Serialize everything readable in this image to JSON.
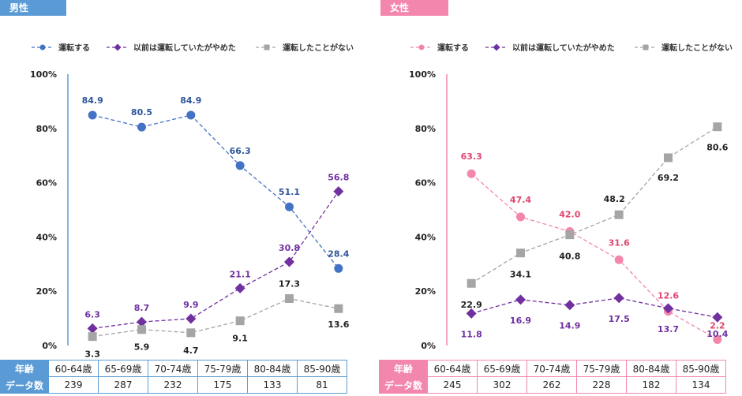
{
  "chart_data": [
    {
      "type": "line",
      "title": "男性",
      "categories": [
        "60-64歳",
        "65-69歳",
        "70-74歳",
        "75-79歳",
        "80-84歳",
        "85-90歳"
      ],
      "y_ticks": [
        "0%",
        "20%",
        "40%",
        "60%",
        "80%",
        "100%"
      ],
      "ylim": [
        0,
        100
      ],
      "series": [
        {
          "name": "運転する",
          "values": [
            84.9,
            80.5,
            84.9,
            66.3,
            51.1,
            28.4
          ],
          "labels": [
            "84.9",
            "80.5",
            "84.9",
            "66.3",
            "51.1",
            "28.4"
          ],
          "color": "#4472c4",
          "label_color": "#2f5597",
          "marker": "circle"
        },
        {
          "name": "以前は運転していたがやめた",
          "values": [
            6.3,
            8.7,
            9.9,
            21.1,
            30.8,
            56.8
          ],
          "labels": [
            "6.3",
            "8.7",
            "9.9",
            "21.1",
            "30.8",
            "56.8"
          ],
          "color": "#7030a0",
          "label_color": "#7030a0",
          "marker": "diamond"
        },
        {
          "name": "運転したことがない",
          "values": [
            3.3,
            5.9,
            4.7,
            9.1,
            17.3,
            13.6
          ],
          "labels": [
            "3.3",
            "5.9",
            "4.7",
            "9.1",
            "17.3",
            "13.6"
          ],
          "color": "#a5a5a5",
          "label_color": "#222222",
          "marker": "square"
        }
      ],
      "table": {
        "row1_header": "年齢",
        "row2_header": "データ数",
        "counts": [
          "239",
          "287",
          "232",
          "175",
          "133",
          "81"
        ]
      }
    },
    {
      "type": "line",
      "title": "女性",
      "categories": [
        "60-64歳",
        "65-69歳",
        "70-74歳",
        "75-79歳",
        "80-84歳",
        "85-90歳"
      ],
      "y_ticks": [
        "0%",
        "20%",
        "40%",
        "60%",
        "80%",
        "100%"
      ],
      "ylim": [
        0,
        100
      ],
      "series": [
        {
          "name": "運転する",
          "values": [
            63.3,
            47.4,
            42.0,
            31.6,
            12.6,
            2.2
          ],
          "labels": [
            "63.3",
            "47.4",
            "42.0",
            "31.6",
            "12.6",
            "2.2"
          ],
          "color": "#f386ad",
          "label_color": "#e0466f",
          "marker": "circle"
        },
        {
          "name": "以前は運転していたがやめた",
          "values": [
            11.8,
            16.9,
            14.9,
            17.5,
            13.7,
            10.4
          ],
          "labels": [
            "11.8",
            "16.9",
            "14.9",
            "17.5",
            "13.7",
            "10.4"
          ],
          "color": "#7030a0",
          "label_color": "#7030a0",
          "marker": "diamond"
        },
        {
          "name": "運転したことがない",
          "values": [
            22.9,
            34.1,
            40.8,
            48.2,
            69.2,
            80.6
          ],
          "labels": [
            "22.9",
            "34.1",
            "40.8",
            "48.2",
            "69.2",
            "80.6"
          ],
          "color": "#a5a5a5",
          "label_color": "#222222",
          "marker": "square"
        }
      ],
      "table": {
        "row1_header": "年齢",
        "row2_header": "データ数",
        "counts": [
          "245",
          "302",
          "262",
          "228",
          "182",
          "134"
        ]
      }
    }
  ]
}
